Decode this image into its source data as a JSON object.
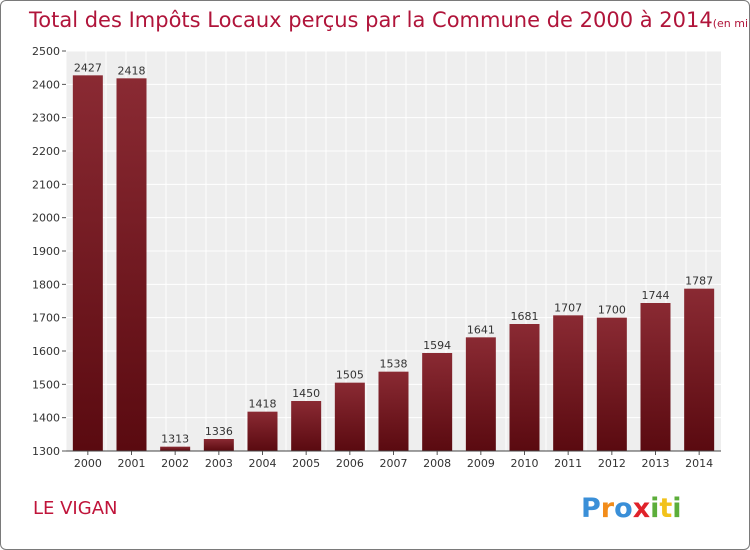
{
  "chart_data": {
    "type": "bar",
    "title": "Total des Impôts Locaux perçus par la Commune de 2000 à 2014",
    "subtitle": "(en milliers d'€)",
    "categories": [
      "2000",
      "2001",
      "2002",
      "2003",
      "2004",
      "2005",
      "2006",
      "2007",
      "2008",
      "2009",
      "2010",
      "2011",
      "2012",
      "2013",
      "2014"
    ],
    "values": [
      2427,
      2418,
      1313,
      1336,
      1418,
      1450,
      1505,
      1538,
      1594,
      1641,
      1681,
      1707,
      1700,
      1744,
      1787
    ],
    "ylim": [
      1300,
      2500
    ],
    "yticks": [
      1300,
      1400,
      1500,
      1600,
      1700,
      1800,
      1900,
      2000,
      2100,
      2200,
      2300,
      2400,
      2500
    ],
    "xlabel": "",
    "ylabel": "",
    "grid": true,
    "bar_color": "#7a1520"
  },
  "commune": "LE VIGAN",
  "logo": {
    "letters": [
      "P",
      "r",
      "o",
      "x",
      "i",
      "t",
      "i"
    ],
    "colors": [
      "#3a8fd8",
      "#f28c1a",
      "#3a8fd8",
      "#e0222a",
      "#5cae3a",
      "#f2c21a",
      "#5cae3a"
    ]
  }
}
